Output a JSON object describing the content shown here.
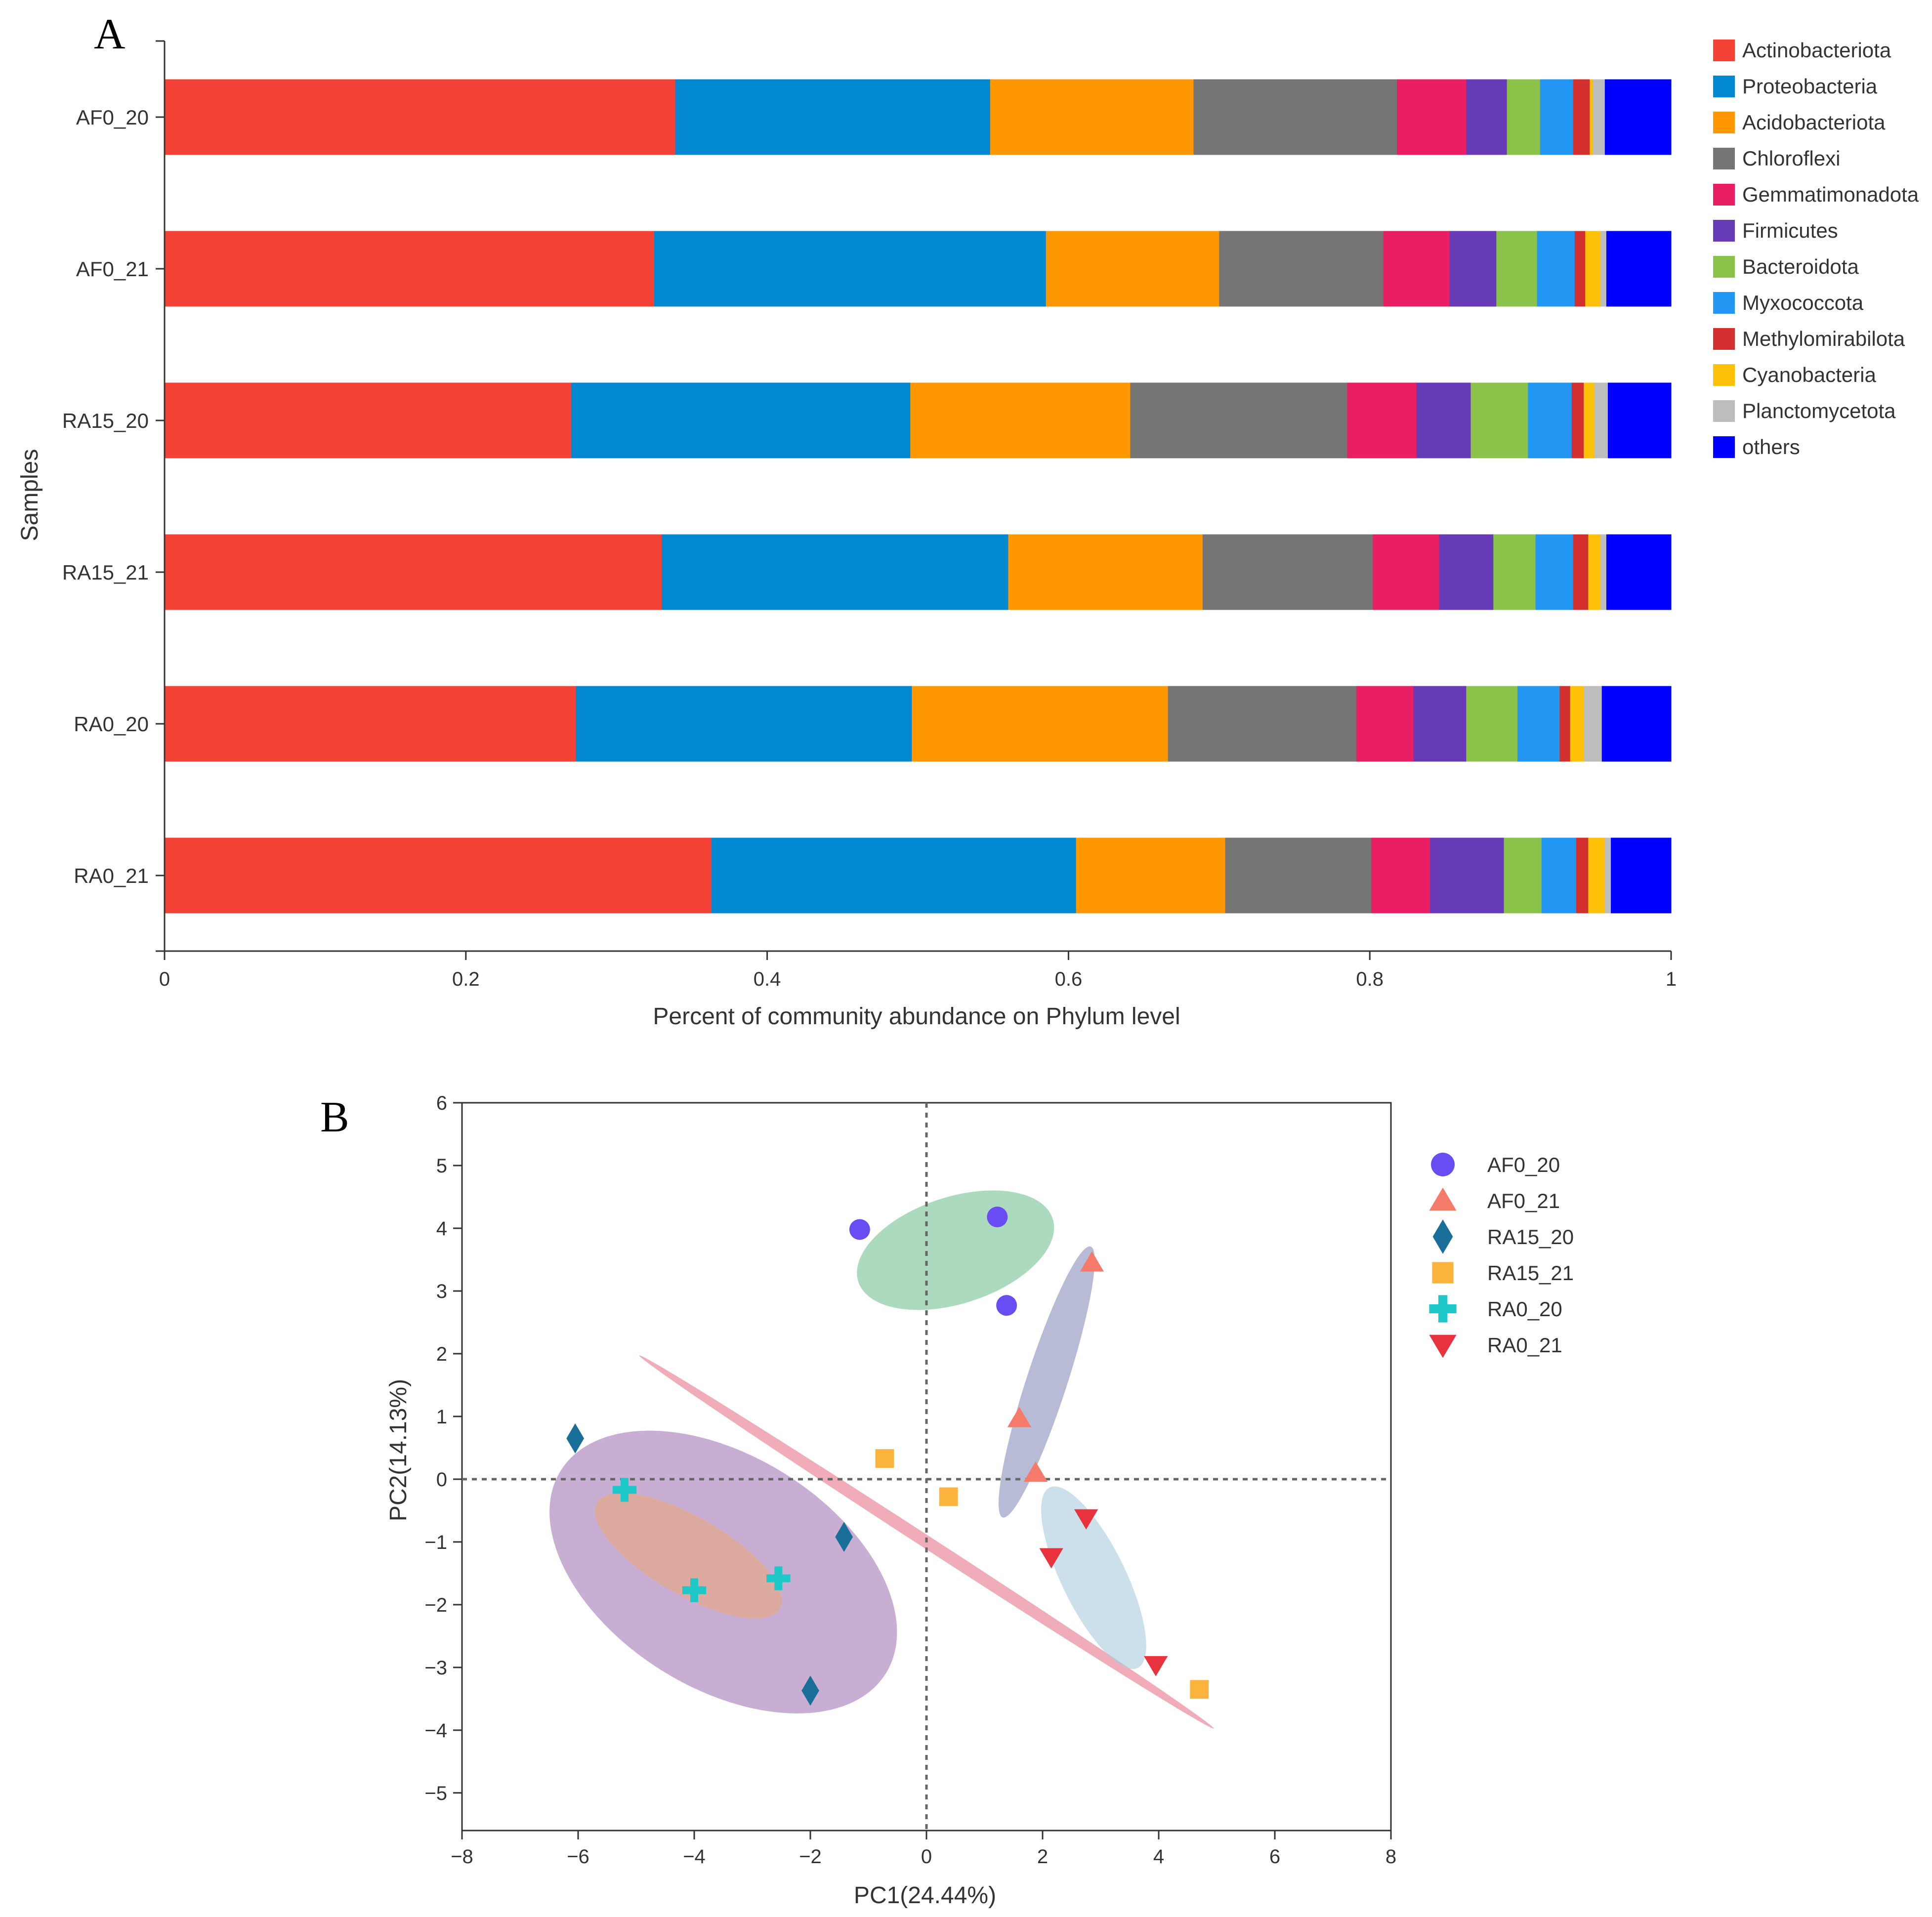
{
  "chart_data": [
    {
      "panel_label": "A",
      "type": "bar",
      "orientation": "horizontal",
      "stacked": true,
      "xlabel": "Percent of community abundance on Phylum level",
      "ylabel": "Samples",
      "xlim": [
        0,
        1
      ],
      "xticks": [
        "0",
        "0.2",
        "0.4",
        "0.6",
        "0.8",
        "1"
      ],
      "xtick_values": [
        0,
        0.2,
        0.4,
        0.6,
        0.8,
        1
      ],
      "categories": [
        "AF0_20",
        "AF0_21",
        "RA15_20",
        "RA15_21",
        "RA0_20",
        "RA0_21"
      ],
      "legend_position": "right",
      "series": [
        {
          "name": "Actinobacteriota",
          "color": "#f44336",
          "values": [
            0.339,
            0.325,
            0.27,
            0.33,
            0.273,
            0.363
          ]
        },
        {
          "name": "Proteobacteria",
          "color": "#0288d1",
          "values": [
            0.209,
            0.26,
            0.225,
            0.23,
            0.223,
            0.242
          ]
        },
        {
          "name": "Acidobacteriota",
          "color": "#ff9800",
          "values": [
            0.135,
            0.115,
            0.146,
            0.129,
            0.17,
            0.099
          ]
        },
        {
          "name": "Chloroflexi",
          "color": "#757575",
          "values": [
            0.135,
            0.109,
            0.144,
            0.113,
            0.125,
            0.097
          ]
        },
        {
          "name": "Gemmatimonadota",
          "color": "#e91e63",
          "values": [
            0.046,
            0.044,
            0.046,
            0.044,
            0.038,
            0.039
          ]
        },
        {
          "name": "Firmicutes",
          "color": "#673ab7",
          "values": [
            0.027,
            0.031,
            0.036,
            0.036,
            0.035,
            0.049
          ]
        },
        {
          "name": "Bacteroidota",
          "color": "#8bc34a",
          "values": [
            0.022,
            0.027,
            0.038,
            0.028,
            0.034,
            0.025
          ]
        },
        {
          "name": "Myxococcota",
          "color": "#2196f3",
          "values": [
            0.022,
            0.025,
            0.029,
            0.025,
            0.028,
            0.023
          ]
        },
        {
          "name": "Methylomirabilota",
          "color": "#d32f2f",
          "values": [
            0.011,
            0.007,
            0.008,
            0.01,
            0.007,
            0.008
          ]
        },
        {
          "name": "Cyanobacteria",
          "color": "#ffc107",
          "values": [
            0.002,
            0.01,
            0.007,
            0.008,
            0.009,
            0.011
          ]
        },
        {
          "name": "Planctomycetota",
          "color": "#bdbdbd",
          "values": [
            0.008,
            0.004,
            0.009,
            0.004,
            0.012,
            0.004
          ]
        },
        {
          "name": "others",
          "color": "#0000ff",
          "values": [
            0.044,
            0.043,
            0.042,
            0.043,
            0.046,
            0.04
          ]
        }
      ]
    },
    {
      "panel_label": "B",
      "type": "scatter",
      "xlabel": "PC1(24.44%)",
      "ylabel": "PC2(14.13%)",
      "xlim": [
        -8,
        8
      ],
      "ylim": [
        -5.6,
        6
      ],
      "xticks": [
        "−8",
        "−6",
        "−4",
        "−2",
        "0",
        "2",
        "4",
        "6",
        "8"
      ],
      "xtick_values": [
        -8,
        -6,
        -4,
        -2,
        0,
        2,
        4,
        6,
        8
      ],
      "yticks": [
        "−5",
        "−4",
        "−3",
        "−2",
        "−1",
        "0",
        "1",
        "2",
        "3",
        "4",
        "5",
        "6"
      ],
      "ytick_values": [
        -5,
        -4,
        -3,
        -2,
        -1,
        0,
        1,
        2,
        3,
        4,
        5,
        6
      ],
      "reference_lines": {
        "x": 0,
        "y": 0,
        "style": "dotted"
      },
      "legend_position": "right",
      "series": [
        {
          "name": "AF0_20",
          "marker": "circle",
          "color": "#6a4df2",
          "points": [
            [
              -1.15,
              3.98
            ],
            [
              1.22,
              4.18
            ],
            [
              1.38,
              2.77
            ]
          ],
          "ellipse": {
            "cx": 0.5,
            "cy": 3.65,
            "rx": 1.76,
            "ry": 0.85,
            "angle": -18,
            "color": "#66bb8a",
            "opacity": 0.55
          }
        },
        {
          "name": "AF0_21",
          "marker": "triangle-up",
          "color": "#f47a6a",
          "points": [
            [
              2.85,
              3.45
            ],
            [
              1.6,
              0.97
            ],
            [
              1.88,
              0.1
            ]
          ],
          "ellipse": {
            "cx": 2.07,
            "cy": 1.55,
            "rx": 0.35,
            "ry": 2.27,
            "angle": 18,
            "color": "#7b83b4",
            "opacity": 0.55
          }
        },
        {
          "name": "RA15_20",
          "marker": "diamond",
          "color": "#1a6f98",
          "points": [
            [
              -6.05,
              0.65
            ],
            [
              -1.42,
              -0.92
            ],
            [
              -2.0,
              -3.37
            ]
          ],
          "ellipse": {
            "cx": -3.5,
            "cy": -1.48,
            "rx": 3.3,
            "ry": 1.85,
            "angle": 32,
            "color": "#9c6bb0",
            "opacity": 0.55
          }
        },
        {
          "name": "RA15_21",
          "marker": "square",
          "color": "#fbb33b",
          "points": [
            [
              -0.72,
              0.33
            ],
            [
              0.38,
              -0.28
            ],
            [
              4.7,
              -3.35
            ]
          ],
          "ellipse": {
            "cx": 0.0,
            "cy": -1.0,
            "rx": 5.9,
            "ry": 0.1,
            "angle": 33,
            "color": "#e8748a",
            "opacity": 0.6
          }
        },
        {
          "name": "RA0_20",
          "marker": "cross",
          "color": "#1ec8c8",
          "points": [
            [
              -5.2,
              -0.17
            ],
            [
              -4.0,
              -1.77
            ],
            [
              -2.55,
              -1.58
            ]
          ],
          "ellipse": {
            "cx": -4.1,
            "cy": -1.22,
            "rx": 1.82,
            "ry": 0.62,
            "angle": 30,
            "color": "#e4a888",
            "opacity": 0.7
          }
        },
        {
          "name": "RA0_21",
          "marker": "triangle-down",
          "color": "#e8333f",
          "points": [
            [
              2.75,
              -0.62
            ],
            [
              2.15,
              -1.24
            ],
            [
              3.95,
              -2.96
            ]
          ],
          "ellipse": {
            "cx": 2.88,
            "cy": -1.57,
            "rx": 0.55,
            "ry": 1.6,
            "angle": -26,
            "color": "#a9ccdc",
            "opacity": 0.6
          }
        }
      ]
    }
  ]
}
